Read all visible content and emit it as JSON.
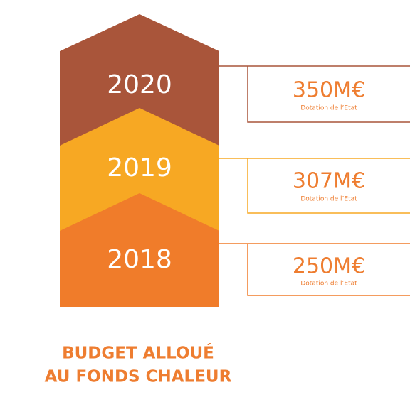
{
  "levels": [
    {
      "year": "2020",
      "amount": "350M€",
      "caption": "Dotation de l’Etat"
    },
    {
      "year": "2019",
      "amount": "307M€",
      "caption": "Dotation de l’Etat"
    },
    {
      "year": "2018",
      "amount": "250M€",
      "caption": "Dotation de l’Etat"
    }
  ],
  "title": [
    "BUDGET ALLOUÉ",
    "AU FONDS CHALEUR"
  ]
}
